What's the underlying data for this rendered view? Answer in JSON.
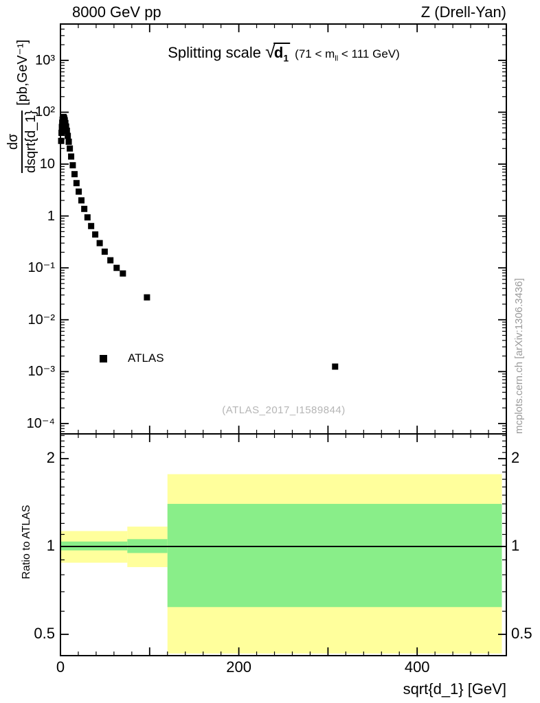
{
  "header": {
    "left": "8000 GeV pp",
    "right": "Z (Drell-Yan)"
  },
  "plot_title": {
    "prefix": "Splitting scale ",
    "sqrt": "√",
    "radicand": "d",
    "radicand_sub": "1",
    "range_pre": "(71 < m",
    "range_sub": "ll",
    "range_post": " < 111 GeV)"
  },
  "axis_labels": {
    "y_numerator": "dσ",
    "y_denominator": "dsqrt{d_1}",
    "y_units": "[pb,GeV⁻¹]",
    "x_label": "sqrt{d_1} [GeV]",
    "ratio_y_label": "Ratio to ATLAS"
  },
  "legend": {
    "label": "ATLAS"
  },
  "watermark": "(ATLAS_2017_I1589844)",
  "side_note": "mcplots.cern.ch [arXiv:1306.3436]",
  "chart_data": {
    "type": "scatter",
    "title": "Splitting scale sqrt(d_1) (71 < m_ll < 111 GeV)",
    "xlabel": "sqrt{d_1} [GeV]",
    "ylabel": "dsigma/dsqrt{d_1} [pb,GeV^-1]",
    "xlim": [
      0,
      500
    ],
    "ylog": true,
    "ylim_log10": [
      -4.2,
      3.7
    ],
    "grid": false,
    "x_ticks_minor_step": 20,
    "x_ticks_major_step": 100,
    "x_tick_labels": [
      {
        "value": 0,
        "label": "0"
      },
      {
        "value": 200,
        "label": "200"
      },
      {
        "value": 400,
        "label": "400"
      }
    ],
    "y_tick_labels": [
      {
        "exp": 3,
        "label": "10³"
      },
      {
        "exp": 2,
        "label": "10²"
      },
      {
        "exp": 1,
        "label": "10"
      },
      {
        "exp": 0,
        "label": "1"
      },
      {
        "exp": -1,
        "label": "10⁻¹"
      },
      {
        "exp": -2,
        "label": "10⁻²"
      },
      {
        "exp": -3,
        "label": "10⁻³"
      },
      {
        "exp": -4,
        "label": "10⁻⁴"
      }
    ],
    "series": [
      {
        "name": "ATLAS",
        "marker": "filled-square",
        "color": "#000000",
        "points": [
          [
            0.8,
            28
          ],
          [
            1.2,
            40
          ],
          [
            1.6,
            52
          ],
          [
            2.0,
            63
          ],
          [
            2.4,
            72
          ],
          [
            2.8,
            78
          ],
          [
            3.2,
            81
          ],
          [
            3.6,
            80
          ],
          [
            4.2,
            76
          ],
          [
            4.8,
            70
          ],
          [
            5.5,
            62
          ],
          [
            6.3,
            53
          ],
          [
            7.2,
            44
          ],
          [
            8.2,
            35
          ],
          [
            9.3,
            27
          ],
          [
            10.5,
            20
          ],
          [
            12,
            14
          ],
          [
            13.8,
            9.5
          ],
          [
            15.8,
            6.4
          ],
          [
            18,
            4.3
          ],
          [
            20.5,
            2.95
          ],
          [
            23.5,
            2.0
          ],
          [
            26.7,
            1.37
          ],
          [
            30.3,
            0.94
          ],
          [
            34.4,
            0.64
          ],
          [
            39,
            0.44
          ],
          [
            44,
            0.3
          ],
          [
            49.6,
            0.205
          ],
          [
            56,
            0.14
          ],
          [
            63,
            0.1
          ],
          [
            70,
            0.078
          ],
          [
            97,
            0.027
          ],
          [
            308,
            0.00125
          ]
        ]
      }
    ],
    "ratio_panel": {
      "ylabel": "Ratio to ATLAS",
      "ylog": true,
      "ylim_log10": [
        -0.374,
        0.386
      ],
      "reference_line": 1.0,
      "tick_labels": [
        {
          "value": 2,
          "label": "2"
        },
        {
          "value": 1,
          "label": "1"
        },
        {
          "value": 0.5,
          "label": "0.5"
        }
      ],
      "band_colors": {
        "outer": "#ffff9c",
        "inner": "#89ee89"
      },
      "bands": [
        {
          "x_range": [
            0,
            75
          ],
          "outer": [
            0.88,
            1.13
          ],
          "inner": [
            0.97,
            1.04
          ]
        },
        {
          "x_range": [
            75,
            120
          ],
          "outer": [
            0.85,
            1.17
          ],
          "inner": [
            0.95,
            1.06
          ]
        },
        {
          "x_range": [
            120,
            495
          ],
          "outer": [
            0.43,
            1.77
          ],
          "inner": [
            0.62,
            1.4
          ]
        }
      ]
    }
  }
}
